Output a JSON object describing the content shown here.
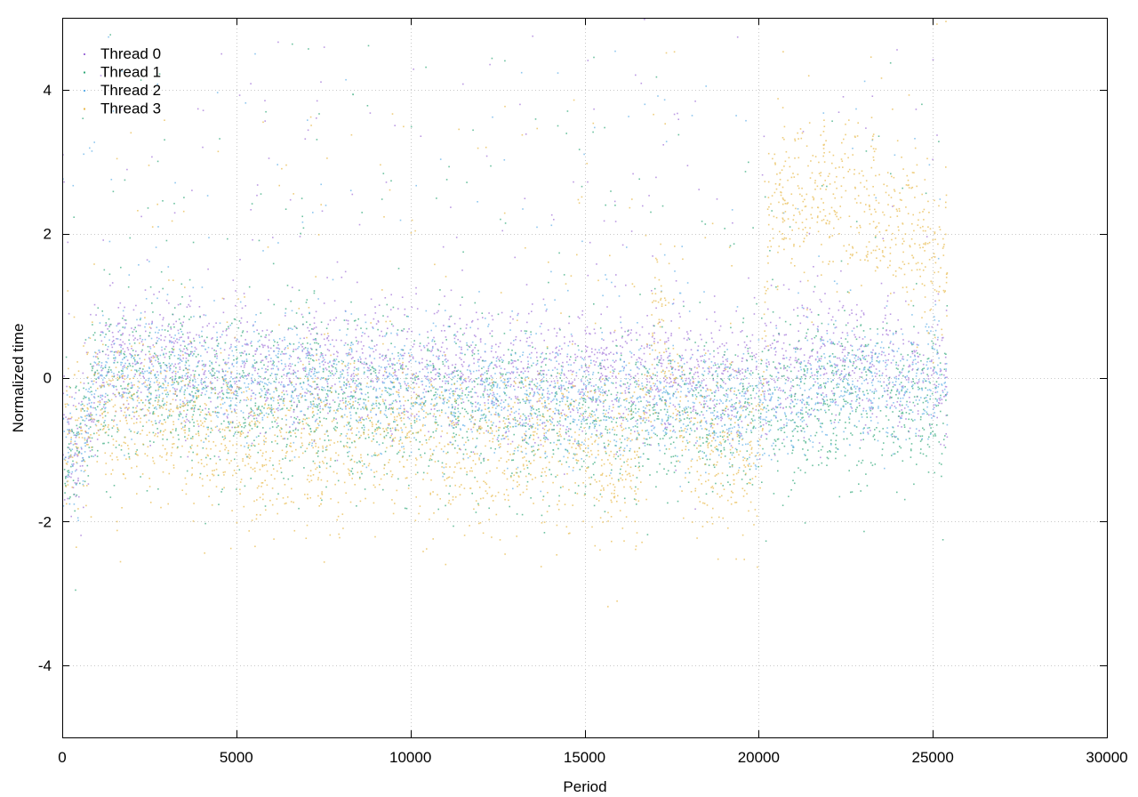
{
  "chart_data": {
    "type": "scatter",
    "title": "",
    "xlabel": "Period",
    "ylabel": "Normalized time",
    "xlim": [
      0,
      30000
    ],
    "ylim": [
      -5,
      5
    ],
    "xticks": [
      0,
      5000,
      10000,
      15000,
      20000,
      25000,
      30000
    ],
    "yticks": [
      -4,
      -2,
      0,
      2,
      4
    ],
    "grid": true,
    "legend_position": "top-left",
    "series": [
      {
        "name": "Thread 0",
        "color": "#a070d8",
        "center": [
          [
            0,
            -1.2
          ],
          [
            600,
            -0.9
          ],
          [
            1000,
            0.2
          ],
          [
            3000,
            0.3
          ],
          [
            6000,
            0.1
          ],
          [
            9000,
            0.2
          ],
          [
            12000,
            0.1
          ],
          [
            15000,
            0.0
          ],
          [
            18000,
            0.0
          ],
          [
            20000,
            0.0
          ],
          [
            22000,
            0.3
          ],
          [
            24000,
            0.1
          ],
          [
            25400,
            0.0
          ]
        ],
        "spread": 0.45
      },
      {
        "name": "Thread 1",
        "color": "#30a878",
        "center": [
          [
            0,
            -1.2
          ],
          [
            600,
            -0.8
          ],
          [
            1000,
            -0.1
          ],
          [
            4000,
            -0.2
          ],
          [
            8000,
            -0.3
          ],
          [
            12000,
            -0.4
          ],
          [
            16000,
            -0.6
          ],
          [
            18000,
            -0.5
          ],
          [
            20000,
            -0.6
          ],
          [
            22000,
            -0.3
          ],
          [
            24000,
            -0.4
          ],
          [
            25400,
            -0.3
          ]
        ],
        "spread": 0.55
      },
      {
        "name": "Thread 2",
        "color": "#60b0e8",
        "center": [
          [
            0,
            -1.1
          ],
          [
            600,
            -0.8
          ],
          [
            1000,
            0.1
          ],
          [
            4000,
            0.0
          ],
          [
            8000,
            -0.1
          ],
          [
            12000,
            -0.2
          ],
          [
            16000,
            -0.3
          ],
          [
            18000,
            -0.3
          ],
          [
            20000,
            -0.5
          ],
          [
            22000,
            0.0
          ],
          [
            24000,
            -0.1
          ],
          [
            25400,
            0.0
          ]
        ],
        "spread": 0.4
      },
      {
        "name": "Thread 3",
        "color": "#e8b848",
        "center": [
          [
            0,
            -1.2
          ],
          [
            600,
            -0.7
          ],
          [
            1000,
            -0.5
          ],
          [
            3000,
            -0.6
          ],
          [
            5000,
            -1.0
          ],
          [
            7000,
            -0.9
          ],
          [
            10000,
            -0.8
          ],
          [
            12000,
            -1.1
          ],
          [
            14000,
            -0.9
          ],
          [
            16500,
            -1.3
          ],
          [
            17000,
            1.0
          ],
          [
            18000,
            -1.0
          ],
          [
            19000,
            -1.1
          ],
          [
            20000,
            -1.2
          ],
          [
            20300,
            2.5
          ],
          [
            23000,
            2.3
          ],
          [
            25400,
            1.5
          ]
        ],
        "spread": 0.55
      }
    ]
  }
}
